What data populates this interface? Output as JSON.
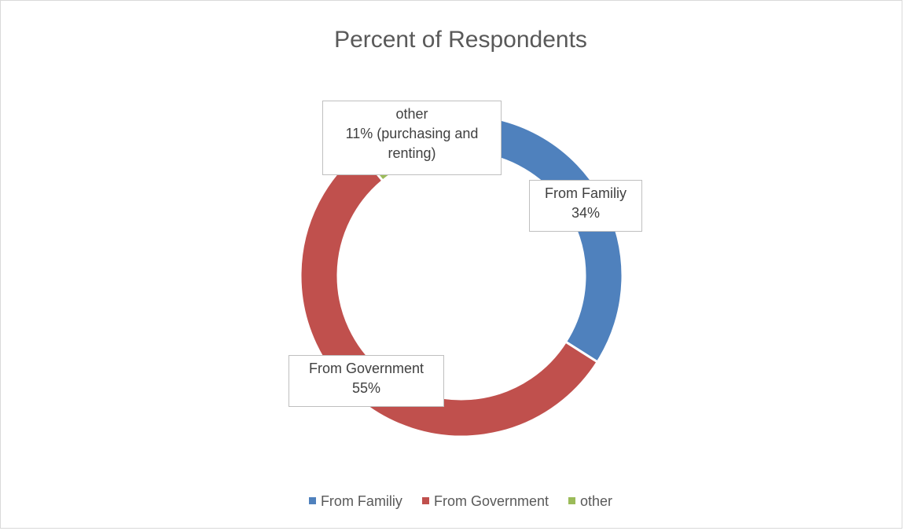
{
  "chart_data": {
    "type": "donut",
    "title": "Percent of Respondents",
    "series": [
      {
        "name": "Percent of Respondents",
        "categories": [
          "From Familiy",
          "From Government",
          "other"
        ],
        "values": [
          34,
          55,
          11
        ],
        "colors": [
          "#4f81bd",
          "#c0504d",
          "#9bbb59"
        ]
      }
    ],
    "data_labels": {
      "family": {
        "lines": [
          "From Familiy",
          "34%"
        ]
      },
      "government": {
        "lines": [
          "From Government",
          "55%"
        ]
      },
      "other": {
        "lines": [
          "other",
          "11%  (purchasing and",
          "renting)"
        ]
      }
    },
    "legend": {
      "position": "bottom",
      "entries": [
        {
          "label": "From Familiy",
          "color": "#4f81bd"
        },
        {
          "label": "From Government",
          "color": "#c0504d"
        },
        {
          "label": "other",
          "color": "#9bbb59"
        }
      ]
    }
  }
}
